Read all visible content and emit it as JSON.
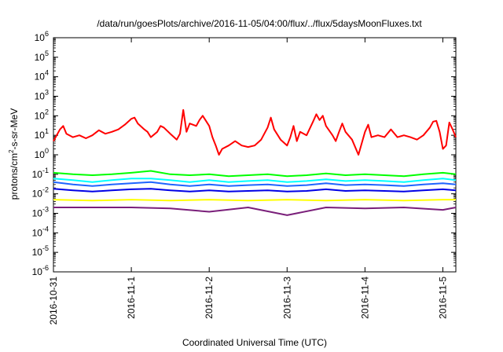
{
  "chart_data": {
    "type": "line",
    "title": "/data/run/goesPlots/archive/2016-11-05/04:00/flux/../flux/5daysMoonFluxes.txt",
    "xlabel": "Coordinated Universal Time (UTC)",
    "ylabel": "protons/cm²-s-sr-MeV",
    "ylabel_parts": {
      "base": "protons/cm",
      "sup": "2",
      "rest": "-s-sr-MeV"
    },
    "yscale": "log",
    "ylim": [
      1e-06,
      1000000.0
    ],
    "xlim": [
      "2016-10-31T00:00",
      "2016-11-05T04:00"
    ],
    "grid": false,
    "y_ticks": [
      {
        "exp": "-6",
        "value": 1e-06
      },
      {
        "exp": "-5",
        "value": 1e-05
      },
      {
        "exp": "-4",
        "value": 0.0001
      },
      {
        "exp": "-3",
        "value": 0.001
      },
      {
        "exp": "-2",
        "value": 0.01
      },
      {
        "exp": "-1",
        "value": 0.1
      },
      {
        "exp": "0",
        "value": 1
      },
      {
        "exp": "1",
        "value": 10
      },
      {
        "exp": "2",
        "value": 100
      },
      {
        "exp": "3",
        "value": 1000
      },
      {
        "exp": "4",
        "value": 10000
      },
      {
        "exp": "5",
        "value": 100000
      },
      {
        "exp": "6",
        "value": 1000000
      }
    ],
    "y_tick_base": "10",
    "x_ticks": [
      {
        "label": "2016-10-31",
        "date": "2016-10-31T00:00"
      },
      {
        "label": "2016-11-1",
        "date": "2016-11-01T00:00"
      },
      {
        "label": "2016-11-2",
        "date": "2016-11-02T00:00"
      },
      {
        "label": "2016-11-3",
        "date": "2016-11-03T00:00"
      },
      {
        "label": "2016-11-4",
        "date": "2016-11-04T00:00"
      },
      {
        "label": "2016-11-5",
        "date": "2016-11-05T00:00"
      }
    ],
    "series": [
      {
        "color": "#ff0000",
        "points": [
          [
            "2016-10-31T00:00",
            5
          ],
          [
            "2016-10-31T02:00",
            20
          ],
          [
            "2016-10-31T03:00",
            30
          ],
          [
            "2016-10-31T04:00",
            12
          ],
          [
            "2016-10-31T06:00",
            8
          ],
          [
            "2016-10-31T08:00",
            10
          ],
          [
            "2016-10-31T10:00",
            7
          ],
          [
            "2016-10-31T12:00",
            10
          ],
          [
            "2016-10-31T14:00",
            18
          ],
          [
            "2016-10-31T16:00",
            12
          ],
          [
            "2016-10-31T18:00",
            15
          ],
          [
            "2016-10-31T20:00",
            20
          ],
          [
            "2016-10-31T22:00",
            35
          ],
          [
            "2016-11-01T00:00",
            70
          ],
          [
            "2016-11-01T01:00",
            80
          ],
          [
            "2016-11-01T02:00",
            40
          ],
          [
            "2016-11-01T04:00",
            20
          ],
          [
            "2016-11-01T05:00",
            15
          ],
          [
            "2016-11-01T06:00",
            8
          ],
          [
            "2016-11-01T08:00",
            15
          ],
          [
            "2016-11-01T09:00",
            30
          ],
          [
            "2016-11-01T10:00",
            25
          ],
          [
            "2016-11-01T12:00",
            12
          ],
          [
            "2016-11-01T14:00",
            6
          ],
          [
            "2016-11-01T15:00",
            12
          ],
          [
            "2016-11-01T16:00",
            200
          ],
          [
            "2016-11-01T17:00",
            15
          ],
          [
            "2016-11-01T18:00",
            40
          ],
          [
            "2016-11-01T20:00",
            30
          ],
          [
            "2016-11-01T21:00",
            60
          ],
          [
            "2016-11-01T22:00",
            100
          ],
          [
            "2016-11-02T00:00",
            30
          ],
          [
            "2016-11-02T01:00",
            8
          ],
          [
            "2016-11-02T02:00",
            3
          ],
          [
            "2016-11-02T03:00",
            1
          ],
          [
            "2016-11-02T04:00",
            2
          ],
          [
            "2016-11-02T06:00",
            3
          ],
          [
            "2016-11-02T08:00",
            5
          ],
          [
            "2016-11-02T10:00",
            3
          ],
          [
            "2016-11-02T12:00",
            2.5
          ],
          [
            "2016-11-02T14:00",
            3
          ],
          [
            "2016-11-02T16:00",
            6
          ],
          [
            "2016-11-02T18:00",
            25
          ],
          [
            "2016-11-02T19:00",
            80
          ],
          [
            "2016-11-02T20:00",
            20
          ],
          [
            "2016-11-02T22:00",
            6
          ],
          [
            "2016-11-03T00:00",
            3
          ],
          [
            "2016-11-03T01:00",
            8
          ],
          [
            "2016-11-03T02:00",
            30
          ],
          [
            "2016-11-03T03:00",
            5
          ],
          [
            "2016-11-03T04:00",
            15
          ],
          [
            "2016-11-03T06:00",
            10
          ],
          [
            "2016-11-03T08:00",
            50
          ],
          [
            "2016-11-03T09:00",
            120
          ],
          [
            "2016-11-03T10:00",
            60
          ],
          [
            "2016-11-03T11:00",
            100
          ],
          [
            "2016-11-03T12:00",
            30
          ],
          [
            "2016-11-03T14:00",
            10
          ],
          [
            "2016-11-03T15:00",
            5
          ],
          [
            "2016-11-03T16:00",
            15
          ],
          [
            "2016-11-03T17:00",
            40
          ],
          [
            "2016-11-03T18:00",
            15
          ],
          [
            "2016-11-03T20:00",
            6
          ],
          [
            "2016-11-03T22:00",
            1
          ],
          [
            "2016-11-04T00:00",
            15
          ],
          [
            "2016-11-04T01:00",
            35
          ],
          [
            "2016-11-04T02:00",
            8
          ],
          [
            "2016-11-04T04:00",
            10
          ],
          [
            "2016-11-04T06:00",
            8
          ],
          [
            "2016-11-04T08:00",
            20
          ],
          [
            "2016-11-04T10:00",
            8
          ],
          [
            "2016-11-04T12:00",
            10
          ],
          [
            "2016-11-04T14:00",
            8
          ],
          [
            "2016-11-04T16:00",
            6
          ],
          [
            "2016-11-04T18:00",
            10
          ],
          [
            "2016-11-04T20:00",
            25
          ],
          [
            "2016-11-04T21:00",
            50
          ],
          [
            "2016-11-04T22:00",
            55
          ],
          [
            "2016-11-04T23:00",
            15
          ],
          [
            "2016-11-05T00:00",
            2
          ],
          [
            "2016-11-05T01:00",
            3
          ],
          [
            "2016-11-05T02:00",
            45
          ],
          [
            "2016-11-05T03:00",
            20
          ],
          [
            "2016-11-05T04:00",
            8
          ]
        ]
      },
      {
        "color": "#00ff00",
        "points": [
          [
            "2016-10-31T00:00",
            0.12
          ],
          [
            "2016-10-31T06:00",
            0.1
          ],
          [
            "2016-10-31T12:00",
            0.09
          ],
          [
            "2016-10-31T18:00",
            0.1
          ],
          [
            "2016-11-01T00:00",
            0.12
          ],
          [
            "2016-11-01T06:00",
            0.15
          ],
          [
            "2016-11-01T12:00",
            0.1
          ],
          [
            "2016-11-01T18:00",
            0.09
          ],
          [
            "2016-11-02T00:00",
            0.1
          ],
          [
            "2016-11-02T06:00",
            0.08
          ],
          [
            "2016-11-02T12:00",
            0.09
          ],
          [
            "2016-11-02T18:00",
            0.1
          ],
          [
            "2016-11-03T00:00",
            0.08
          ],
          [
            "2016-11-03T06:00",
            0.09
          ],
          [
            "2016-11-03T12:00",
            0.11
          ],
          [
            "2016-11-03T18:00",
            0.09
          ],
          [
            "2016-11-04T00:00",
            0.1
          ],
          [
            "2016-11-04T06:00",
            0.09
          ],
          [
            "2016-11-04T12:00",
            0.08
          ],
          [
            "2016-11-04T18:00",
            0.1
          ],
          [
            "2016-11-05T00:00",
            0.12
          ],
          [
            "2016-11-05T04:00",
            0.1
          ]
        ]
      },
      {
        "color": "#00ffff",
        "points": [
          [
            "2016-10-31T00:00",
            0.06
          ],
          [
            "2016-10-31T06:00",
            0.05
          ],
          [
            "2016-10-31T12:00",
            0.04
          ],
          [
            "2016-10-31T18:00",
            0.05
          ],
          [
            "2016-11-01T00:00",
            0.06
          ],
          [
            "2016-11-01T06:00",
            0.06
          ],
          [
            "2016-11-01T12:00",
            0.05
          ],
          [
            "2016-11-01T18:00",
            0.04
          ],
          [
            "2016-11-02T00:00",
            0.05
          ],
          [
            "2016-11-02T06:00",
            0.04
          ],
          [
            "2016-11-02T12:00",
            0.045
          ],
          [
            "2016-11-02T18:00",
            0.05
          ],
          [
            "2016-11-03T00:00",
            0.04
          ],
          [
            "2016-11-03T06:00",
            0.045
          ],
          [
            "2016-11-03T12:00",
            0.055
          ],
          [
            "2016-11-03T18:00",
            0.045
          ],
          [
            "2016-11-04T00:00",
            0.05
          ],
          [
            "2016-11-04T06:00",
            0.045
          ],
          [
            "2016-11-04T12:00",
            0.04
          ],
          [
            "2016-11-04T18:00",
            0.05
          ],
          [
            "2016-11-05T00:00",
            0.06
          ],
          [
            "2016-11-05T04:00",
            0.05
          ]
        ]
      },
      {
        "color": "#1e64ff",
        "points": [
          [
            "2016-10-31T00:00",
            0.04
          ],
          [
            "2016-10-31T06:00",
            0.03
          ],
          [
            "2016-10-31T12:00",
            0.025
          ],
          [
            "2016-10-31T18:00",
            0.03
          ],
          [
            "2016-11-01T00:00",
            0.035
          ],
          [
            "2016-11-01T06:00",
            0.04
          ],
          [
            "2016-11-01T12:00",
            0.03
          ],
          [
            "2016-11-01T18:00",
            0.025
          ],
          [
            "2016-11-02T00:00",
            0.03
          ],
          [
            "2016-11-02T06:00",
            0.025
          ],
          [
            "2016-11-02T12:00",
            0.028
          ],
          [
            "2016-11-02T18:00",
            0.03
          ],
          [
            "2016-11-03T00:00",
            0.025
          ],
          [
            "2016-11-03T06:00",
            0.028
          ],
          [
            "2016-11-03T12:00",
            0.035
          ],
          [
            "2016-11-03T18:00",
            0.028
          ],
          [
            "2016-11-04T00:00",
            0.03
          ],
          [
            "2016-11-04T06:00",
            0.028
          ],
          [
            "2016-11-04T12:00",
            0.025
          ],
          [
            "2016-11-04T18:00",
            0.03
          ],
          [
            "2016-11-05T00:00",
            0.035
          ],
          [
            "2016-11-05T04:00",
            0.03
          ]
        ]
      },
      {
        "color": "#0000e6",
        "points": [
          [
            "2016-10-31T00:00",
            0.018
          ],
          [
            "2016-10-31T06:00",
            0.015
          ],
          [
            "2016-10-31T12:00",
            0.013
          ],
          [
            "2016-10-31T18:00",
            0.015
          ],
          [
            "2016-11-01T00:00",
            0.017
          ],
          [
            "2016-11-01T06:00",
            0.018
          ],
          [
            "2016-11-01T12:00",
            0.015
          ],
          [
            "2016-11-01T18:00",
            0.013
          ],
          [
            "2016-11-02T00:00",
            0.015
          ],
          [
            "2016-11-02T06:00",
            0.013
          ],
          [
            "2016-11-02T12:00",
            0.014
          ],
          [
            "2016-11-02T18:00",
            0.015
          ],
          [
            "2016-11-03T00:00",
            0.013
          ],
          [
            "2016-11-03T06:00",
            0.014
          ],
          [
            "2016-11-03T12:00",
            0.017
          ],
          [
            "2016-11-03T18:00",
            0.014
          ],
          [
            "2016-11-04T00:00",
            0.015
          ],
          [
            "2016-11-04T06:00",
            0.014
          ],
          [
            "2016-11-04T12:00",
            0.013
          ],
          [
            "2016-11-04T18:00",
            0.015
          ],
          [
            "2016-11-05T00:00",
            0.017
          ],
          [
            "2016-11-05T04:00",
            0.015
          ]
        ]
      },
      {
        "color": "#ffff00",
        "points": [
          [
            "2016-10-31T00:00",
            0.005
          ],
          [
            "2016-10-31T12:00",
            0.0045
          ],
          [
            "2016-11-01T00:00",
            0.005
          ],
          [
            "2016-11-01T12:00",
            0.0045
          ],
          [
            "2016-11-02T00:00",
            0.005
          ],
          [
            "2016-11-02T12:00",
            0.0045
          ],
          [
            "2016-11-03T00:00",
            0.005
          ],
          [
            "2016-11-03T12:00",
            0.0045
          ],
          [
            "2016-11-04T00:00",
            0.005
          ],
          [
            "2016-11-04T12:00",
            0.0045
          ],
          [
            "2016-11-05T00:00",
            0.005
          ],
          [
            "2016-11-05T04:00",
            0.005
          ]
        ]
      },
      {
        "color": "#7a1f7a",
        "points": [
          [
            "2016-10-31T00:00",
            0.002
          ],
          [
            "2016-10-31T12:00",
            0.002
          ],
          [
            "2016-11-01T00:00",
            0.002
          ],
          [
            "2016-11-01T12:00",
            0.0018
          ],
          [
            "2016-11-02T00:00",
            0.0012
          ],
          [
            "2016-11-02T12:00",
            0.002
          ],
          [
            "2016-11-03T00:00",
            0.0008
          ],
          [
            "2016-11-03T12:00",
            0.002
          ],
          [
            "2016-11-04T00:00",
            0.0018
          ],
          [
            "2016-11-04T12:00",
            0.002
          ],
          [
            "2016-11-05T00:00",
            0.0015
          ],
          [
            "2016-11-05T04:00",
            0.002
          ]
        ]
      }
    ]
  }
}
